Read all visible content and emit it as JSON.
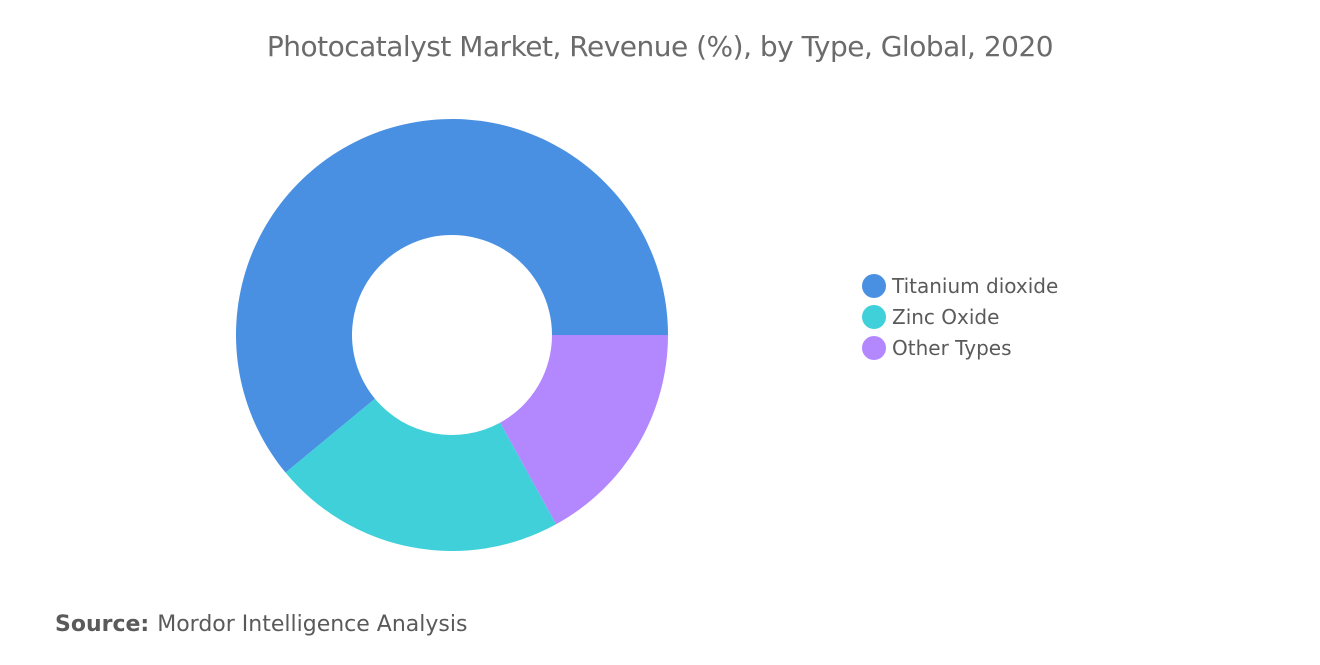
{
  "chart_data": {
    "type": "pie",
    "donut": true,
    "title": "Photocatalyst Market, Revenue (%), by Type, Global, 2020",
    "categories": [
      "Titanium dioxide",
      "Zinc Oxide",
      "Other Types"
    ],
    "values": [
      61,
      22,
      17
    ],
    "colors": [
      "#4a90e2",
      "#40d0da",
      "#b388ff"
    ],
    "legend_position": "right"
  },
  "source": {
    "label": "Source:",
    "text": "Mordor Intelligence Analysis"
  }
}
